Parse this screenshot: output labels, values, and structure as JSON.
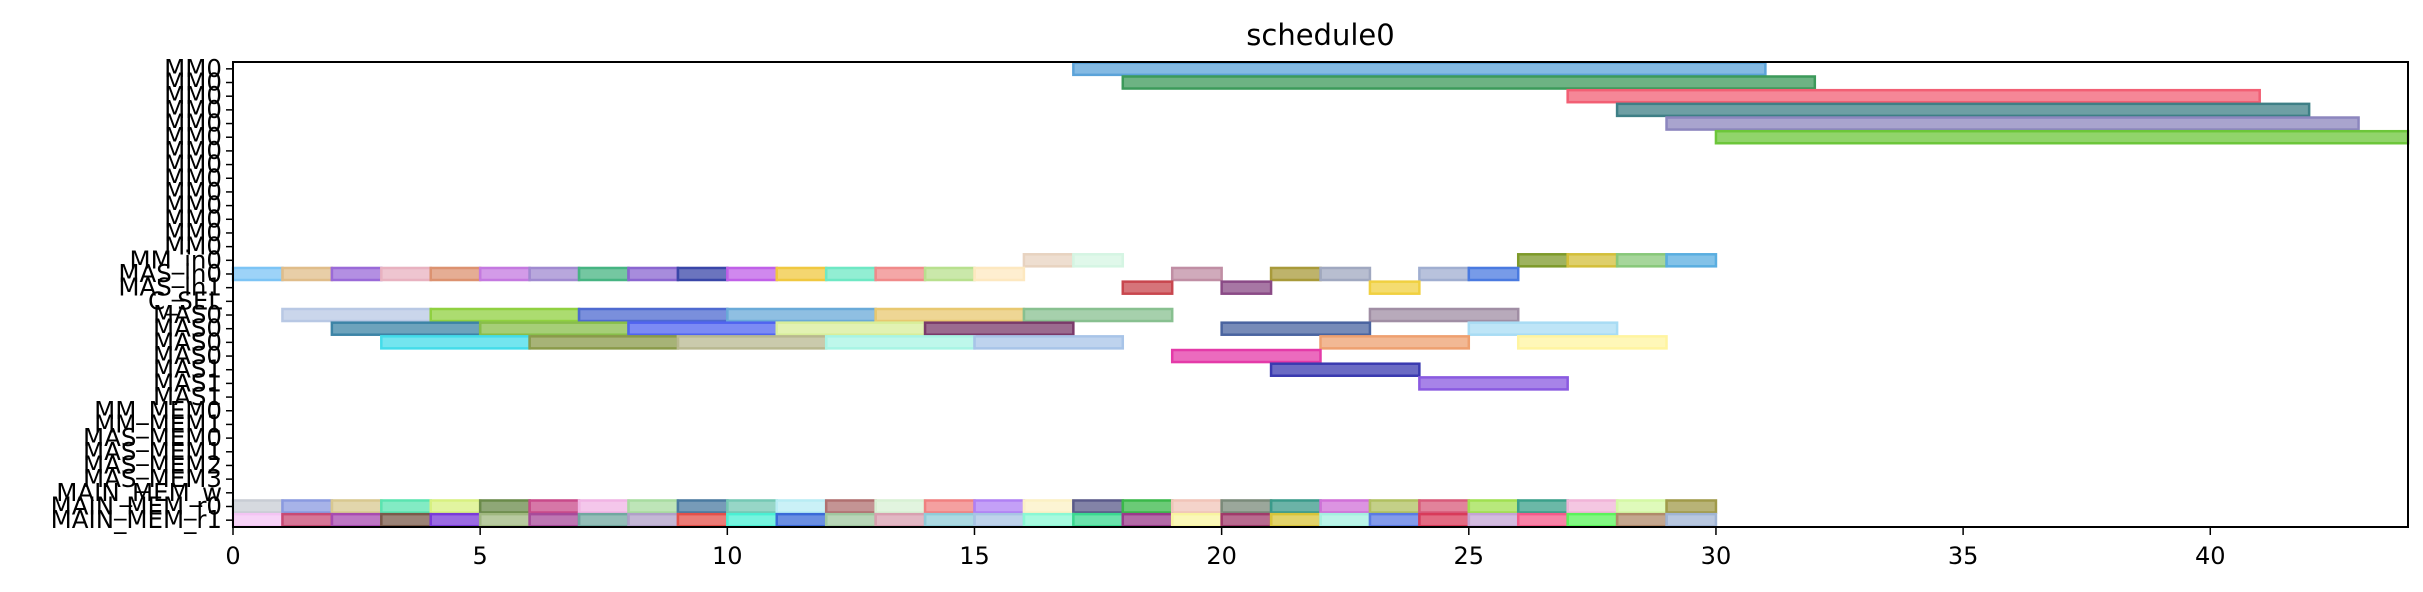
{
  "chart_data": {
    "type": "gantt",
    "title": "schedule0",
    "xlabel": "",
    "ylabel": "",
    "xlim": [
      0,
      44
    ],
    "x_ticks": [
      0,
      5,
      10,
      15,
      20,
      25,
      30,
      35,
      40
    ],
    "grid": false,
    "legend": "none",
    "rows": [
      "MM0",
      "MM0",
      "MM0",
      "MM0",
      "MM0",
      "MM0",
      "MM0",
      "MM0",
      "MM0",
      "MM0",
      "MM0",
      "MM0",
      "MM0",
      "MM0",
      "MM_in0",
      "MAS_in0",
      "MAS_in1",
      "C_SEL",
      "MAS0",
      "MAS0",
      "MAS0",
      "MAS0",
      "MAS1",
      "MAS1",
      "MAS1",
      "MM_MEM0",
      "MM_MEM1",
      "MAS_MEM0",
      "MAS_MEM1",
      "MAS_MEM2",
      "MAS_MEM3",
      "MAIN_MEM_w",
      "MAIN_MEM_r0",
      "MAIN_MEM_r1"
    ],
    "tasks": [
      {
        "row": 0,
        "start": 17,
        "end": 31,
        "color": "#5ba3d9"
      },
      {
        "row": 1,
        "start": 18,
        "end": 32,
        "color": "#3c9a5a"
      },
      {
        "row": 2,
        "start": 27,
        "end": 41,
        "color": "#f25f74"
      },
      {
        "row": 3,
        "start": 28,
        "end": 42,
        "color": "#3e7f86"
      },
      {
        "row": 4,
        "start": 29,
        "end": 43,
        "color": "#8c86be"
      },
      {
        "row": 5,
        "start": 30,
        "end": 44,
        "color": "#6cc63a"
      },
      {
        "row": 14,
        "start": 16,
        "end": 17,
        "color": "#e8d3c0"
      },
      {
        "row": 14,
        "start": 17,
        "end": 18,
        "color": "#d5f5e3"
      },
      {
        "row": 14,
        "start": 26,
        "end": 27,
        "color": "#7e9a2a"
      },
      {
        "row": 14,
        "start": 27,
        "end": 28,
        "color": "#d3bf3a"
      },
      {
        "row": 14,
        "start": 28,
        "end": 29,
        "color": "#88c87a"
      },
      {
        "row": 14,
        "start": 29,
        "end": 30,
        "color": "#5aaee0"
      },
      {
        "row": 15,
        "start": 0,
        "end": 1,
        "color": "#7cc4f5"
      },
      {
        "row": 15,
        "start": 1,
        "end": 2,
        "color": "#e0bd8a"
      },
      {
        "row": 15,
        "start": 2,
        "end": 3,
        "color": "#9a6ad8"
      },
      {
        "row": 15,
        "start": 3,
        "end": 4,
        "color": "#e8b2c0"
      },
      {
        "row": 15,
        "start": 4,
        "end": 5,
        "color": "#dc9270"
      },
      {
        "row": 15,
        "start": 5,
        "end": 6,
        "color": "#c479e0"
      },
      {
        "row": 15,
        "start": 6,
        "end": 7,
        "color": "#a08ad0"
      },
      {
        "row": 15,
        "start": 7,
        "end": 8,
        "color": "#46b482"
      },
      {
        "row": 15,
        "start": 8,
        "end": 9,
        "color": "#8a66d0"
      },
      {
        "row": 15,
        "start": 9,
        "end": 10,
        "color": "#3a46a8"
      },
      {
        "row": 15,
        "start": 10,
        "end": 11,
        "color": "#c060e8"
      },
      {
        "row": 15,
        "start": 11,
        "end": 12,
        "color": "#f0c840"
      },
      {
        "row": 15,
        "start": 12,
        "end": 13,
        "color": "#6ee8c4"
      },
      {
        "row": 15,
        "start": 13,
        "end": 14,
        "color": "#f08a8a"
      },
      {
        "row": 15,
        "start": 14,
        "end": 15,
        "color": "#b8e08e"
      },
      {
        "row": 15,
        "start": 15,
        "end": 16,
        "color": "#fde8c0"
      },
      {
        "row": 15,
        "start": 19,
        "end": 20,
        "color": "#c08ea4"
      },
      {
        "row": 15,
        "start": 21,
        "end": 22,
        "color": "#a89a3a"
      },
      {
        "row": 15,
        "start": 22,
        "end": 23,
        "color": "#a0a8c0"
      },
      {
        "row": 15,
        "start": 24,
        "end": 25,
        "color": "#a0aed0"
      },
      {
        "row": 15,
        "start": 25,
        "end": 26,
        "color": "#4a7ae0"
      },
      {
        "row": 16,
        "start": 18,
        "end": 19,
        "color": "#c8464e"
      },
      {
        "row": 16,
        "start": 20,
        "end": 21,
        "color": "#8a4a86"
      },
      {
        "row": 16,
        "start": 23,
        "end": 24,
        "color": "#f0d040"
      },
      {
        "row": 18,
        "start": 1,
        "end": 4,
        "color": "#b8c8e4"
      },
      {
        "row": 18,
        "start": 4,
        "end": 7,
        "color": "#90d040"
      },
      {
        "row": 18,
        "start": 7,
        "end": 10,
        "color": "#4e6ad0"
      },
      {
        "row": 18,
        "start": 10,
        "end": 13,
        "color": "#6aaad8"
      },
      {
        "row": 18,
        "start": 13,
        "end": 16,
        "color": "#e8c870"
      },
      {
        "row": 18,
        "start": 16,
        "end": 19,
        "color": "#88c090"
      },
      {
        "row": 18,
        "start": 23,
        "end": 26,
        "color": "#a08ea4"
      },
      {
        "row": 19,
        "start": 2,
        "end": 5,
        "color": "#3c84a6"
      },
      {
        "row": 19,
        "start": 5,
        "end": 8,
        "color": "#88be4a"
      },
      {
        "row": 19,
        "start": 8,
        "end": 11,
        "color": "#5064f0"
      },
      {
        "row": 19,
        "start": 11,
        "end": 14,
        "color": "#d8ee9a"
      },
      {
        "row": 19,
        "start": 14,
        "end": 17,
        "color": "#7a3a6a"
      },
      {
        "row": 19,
        "start": 20,
        "end": 23,
        "color": "#4a64a0"
      },
      {
        "row": 19,
        "start": 25,
        "end": 28,
        "color": "#a8dcf4"
      },
      {
        "row": 20,
        "start": 3,
        "end": 6,
        "color": "#44dcea"
      },
      {
        "row": 20,
        "start": 6,
        "end": 9,
        "color": "#8a9a4a"
      },
      {
        "row": 20,
        "start": 9,
        "end": 12,
        "color": "#b8b890"
      },
      {
        "row": 20,
        "start": 12,
        "end": 15,
        "color": "#a8f4e4"
      },
      {
        "row": 20,
        "start": 15,
        "end": 18,
        "color": "#a8c4e8"
      },
      {
        "row": 20,
        "start": 22,
        "end": 25,
        "color": "#eea070"
      },
      {
        "row": 20,
        "start": 26,
        "end": 29,
        "color": "#fff4a0"
      },
      {
        "row": 21,
        "start": 19,
        "end": 22,
        "color": "#e43aa8"
      },
      {
        "row": 22,
        "start": 21,
        "end": 24,
        "color": "#3a3ab0"
      },
      {
        "row": 23,
        "start": 24,
        "end": 27,
        "color": "#8a5ae0"
      },
      {
        "row": 32,
        "start": 0,
        "end": 1,
        "color": "#c8ccd4"
      },
      {
        "row": 32,
        "start": 1,
        "end": 2,
        "color": "#8a9ae0"
      },
      {
        "row": 32,
        "start": 2,
        "end": 3,
        "color": "#d8c890"
      },
      {
        "row": 32,
        "start": 3,
        "end": 4,
        "color": "#5ae4b0"
      },
      {
        "row": 32,
        "start": 4,
        "end": 5,
        "color": "#d8f080"
      },
      {
        "row": 32,
        "start": 5,
        "end": 6,
        "color": "#6a8a4a"
      },
      {
        "row": 32,
        "start": 6,
        "end": 7,
        "color": "#c84a8a"
      },
      {
        "row": 32,
        "start": 7,
        "end": 8,
        "color": "#f0b4e4"
      },
      {
        "row": 32,
        "start": 8,
        "end": 9,
        "color": "#a8dca0"
      },
      {
        "row": 32,
        "start": 9,
        "end": 10,
        "color": "#4a7aa0"
      },
      {
        "row": 32,
        "start": 10,
        "end": 11,
        "color": "#74c8b4"
      },
      {
        "row": 32,
        "start": 11,
        "end": 12,
        "color": "#b8ecf4"
      },
      {
        "row": 32,
        "start": 12,
        "end": 13,
        "color": "#b07070"
      },
      {
        "row": 32,
        "start": 13,
        "end": 14,
        "color": "#d8f0d4"
      },
      {
        "row": 32,
        "start": 14,
        "end": 15,
        "color": "#f08080"
      },
      {
        "row": 32,
        "start": 15,
        "end": 16,
        "color": "#b080f4"
      },
      {
        "row": 32,
        "start": 16,
        "end": 17,
        "color": "#fbf0c4"
      },
      {
        "row": 32,
        "start": 17,
        "end": 18,
        "color": "#5a5a8a"
      },
      {
        "row": 32,
        "start": 18,
        "end": 19,
        "color": "#3ab84a"
      },
      {
        "row": 32,
        "start": 19,
        "end": 20,
        "color": "#f0c4b8"
      },
      {
        "row": 32,
        "start": 20,
        "end": 21,
        "color": "#7a8a7a"
      },
      {
        "row": 32,
        "start": 21,
        "end": 22,
        "color": "#3a9a8a"
      },
      {
        "row": 32,
        "start": 22,
        "end": 23,
        "color": "#d070d8"
      },
      {
        "row": 32,
        "start": 23,
        "end": 24,
        "color": "#b0c060"
      },
      {
        "row": 32,
        "start": 24,
        "end": 25,
        "color": "#d85a7a"
      },
      {
        "row": 32,
        "start": 25,
        "end": 26,
        "color": "#a0e050"
      },
      {
        "row": 32,
        "start": 26,
        "end": 27,
        "color": "#3aa08a"
      },
      {
        "row": 32,
        "start": 27,
        "end": 28,
        "color": "#f0b4d8"
      },
      {
        "row": 32,
        "start": 28,
        "end": 29,
        "color": "#d4f8a4"
      },
      {
        "row": 32,
        "start": 29,
        "end": 30,
        "color": "#a09a4a"
      },
      {
        "row": 33,
        "start": 0,
        "end": 1,
        "color": "#f4c4f4"
      },
      {
        "row": 33,
        "start": 1,
        "end": 2,
        "color": "#c84a74"
      },
      {
        "row": 33,
        "start": 2,
        "end": 3,
        "color": "#a84ab0"
      },
      {
        "row": 33,
        "start": 3,
        "end": 4,
        "color": "#7a5a4a"
      },
      {
        "row": 33,
        "start": 4,
        "end": 5,
        "color": "#7a3ad8"
      },
      {
        "row": 33,
        "start": 5,
        "end": 6,
        "color": "#a0b880"
      },
      {
        "row": 33,
        "start": 6,
        "end": 7,
        "color": "#a84a9a"
      },
      {
        "row": 33,
        "start": 7,
        "end": 8,
        "color": "#70a8a0"
      },
      {
        "row": 33,
        "start": 8,
        "end": 9,
        "color": "#b0a0c8"
      },
      {
        "row": 33,
        "start": 9,
        "end": 10,
        "color": "#e4504a"
      },
      {
        "row": 33,
        "start": 10,
        "end": 11,
        "color": "#4af0d4"
      },
      {
        "row": 33,
        "start": 11,
        "end": 12,
        "color": "#3a6ad8"
      },
      {
        "row": 33,
        "start": 12,
        "end": 13,
        "color": "#a0c8a0"
      },
      {
        "row": 33,
        "start": 13,
        "end": 14,
        "color": "#d8a0b0"
      },
      {
        "row": 33,
        "start": 14,
        "end": 15,
        "color": "#90ccd8"
      },
      {
        "row": 33,
        "start": 15,
        "end": 16,
        "color": "#a8c4e4"
      },
      {
        "row": 33,
        "start": 16,
        "end": 17,
        "color": "#8af8d4"
      },
      {
        "row": 33,
        "start": 17,
        "end": 18,
        "color": "#3ad890"
      },
      {
        "row": 33,
        "start": 18,
        "end": 19,
        "color": "#9a3a8a"
      },
      {
        "row": 33,
        "start": 19,
        "end": 20,
        "color": "#f8f4a0"
      },
      {
        "row": 33,
        "start": 20,
        "end": 21,
        "color": "#a03a6a"
      },
      {
        "row": 33,
        "start": 21,
        "end": 22,
        "color": "#d8c43a"
      },
      {
        "row": 33,
        "start": 22,
        "end": 23,
        "color": "#a4f0e0"
      },
      {
        "row": 33,
        "start": 23,
        "end": 24,
        "color": "#5a7ae4"
      },
      {
        "row": 33,
        "start": 24,
        "end": 25,
        "color": "#d83a5a"
      },
      {
        "row": 33,
        "start": 25,
        "end": 26,
        "color": "#c4a4d4"
      },
      {
        "row": 33,
        "start": 26,
        "end": 27,
        "color": "#f45a8a"
      },
      {
        "row": 33,
        "start": 27,
        "end": 28,
        "color": "#5af45a"
      },
      {
        "row": 33,
        "start": 28,
        "end": 29,
        "color": "#b08a6a"
      },
      {
        "row": 33,
        "start": 29,
        "end": 30,
        "color": "#a0b4d4"
      }
    ]
  }
}
